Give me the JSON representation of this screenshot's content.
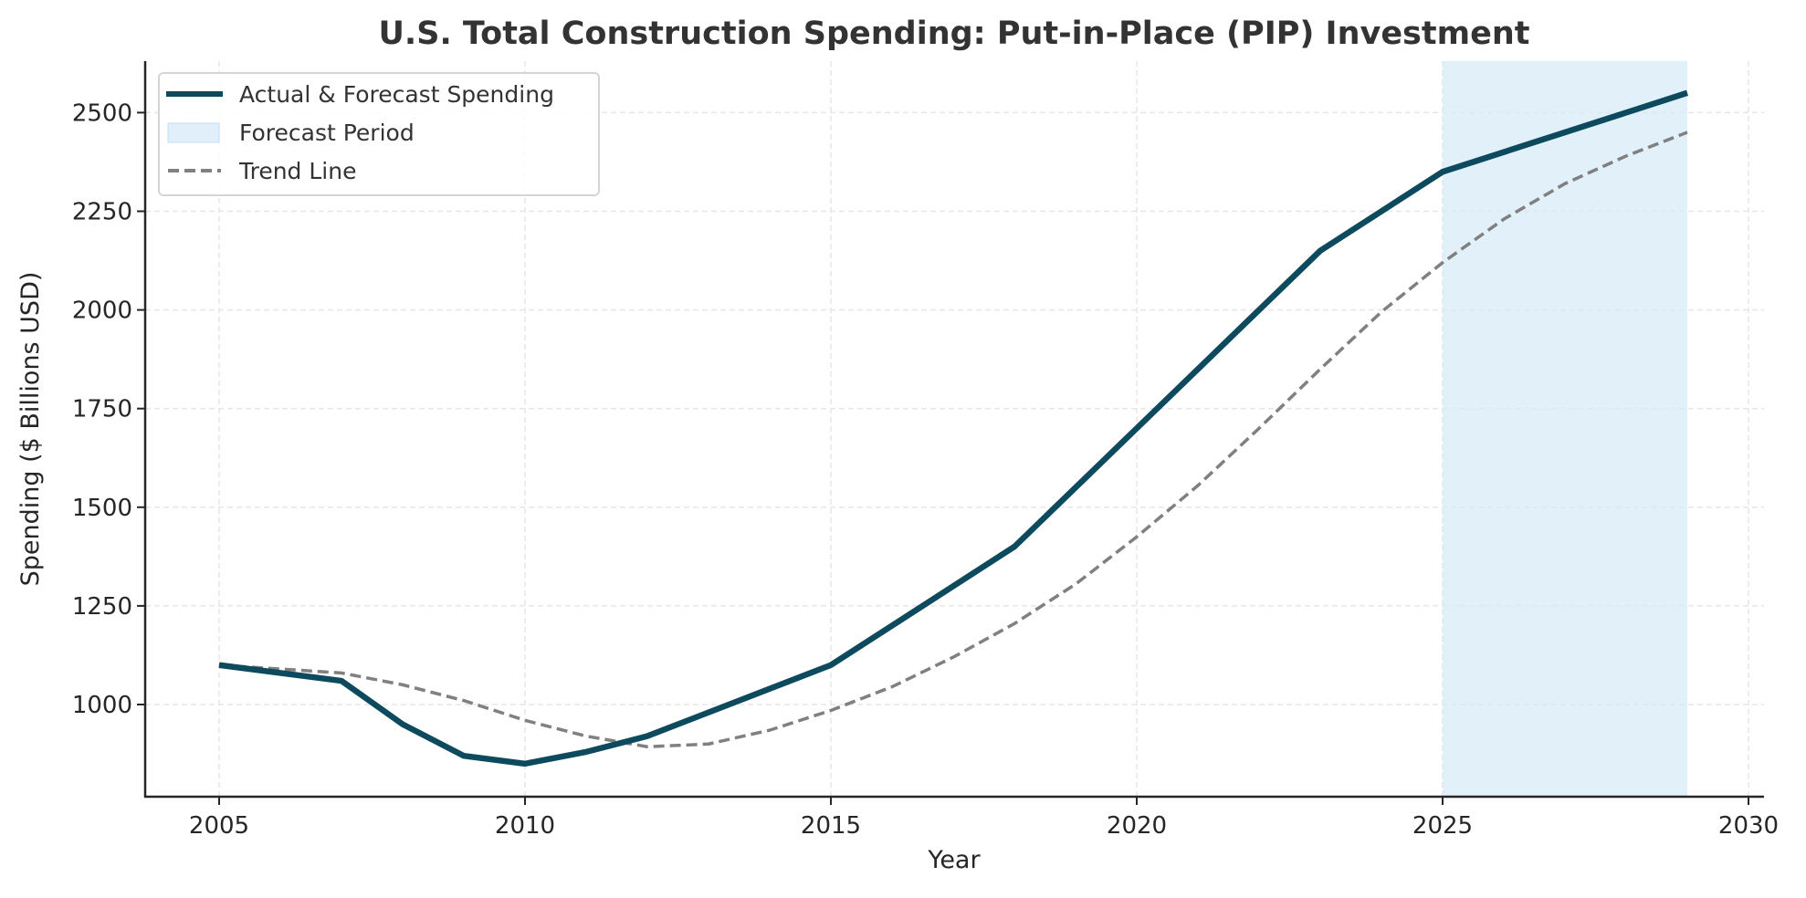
{
  "chart_data": {
    "type": "line",
    "title": "U.S. Total Construction Spending: Put-in-Place (PIP) Investment",
    "xlabel": "Year",
    "ylabel": "Spending ($ Billions USD)",
    "xlim": [
      2003.8,
      2030.4
    ],
    "ylim": [
      770,
      2635
    ],
    "xticks": [
      2005,
      2010,
      2015,
      2020,
      2025,
      2030
    ],
    "yticks": [
      1000,
      1250,
      1500,
      1750,
      2000,
      2250,
      2500
    ],
    "grid": true,
    "legend_position": "top-left",
    "series": [
      {
        "name": "Actual & Forecast Spending",
        "style": "solid",
        "color": "#0d4a5e",
        "x": [
          2005,
          2007,
          2008,
          2009,
          2010,
          2011,
          2012,
          2015,
          2018,
          2023,
          2025,
          2029
        ],
        "y": [
          1100,
          1060,
          950,
          870,
          850,
          880,
          920,
          1100,
          1400,
          2150,
          2350,
          2550
        ]
      },
      {
        "name": "Trend Line",
        "style": "dashed",
        "color": "#808080",
        "x": [
          2005,
          2006,
          2007,
          2008,
          2009,
          2010,
          2011,
          2012,
          2013,
          2014,
          2015,
          2016,
          2017,
          2018,
          2019,
          2020,
          2021,
          2022,
          2023,
          2024,
          2025,
          2026,
          2027,
          2028,
          2029
        ],
        "y": [
          1100,
          1090,
          1080,
          1050,
          1010,
          960,
          920,
          893,
          900,
          935,
          985,
          1045,
          1120,
          1205,
          1305,
          1425,
          1555,
          1700,
          1850,
          1995,
          2120,
          2230,
          2320,
          2390,
          2450
        ]
      }
    ],
    "shaded_regions": [
      {
        "name": "Forecast Period",
        "x": [
          2025,
          2029
        ],
        "color": "#d6e9f8"
      }
    ]
  }
}
